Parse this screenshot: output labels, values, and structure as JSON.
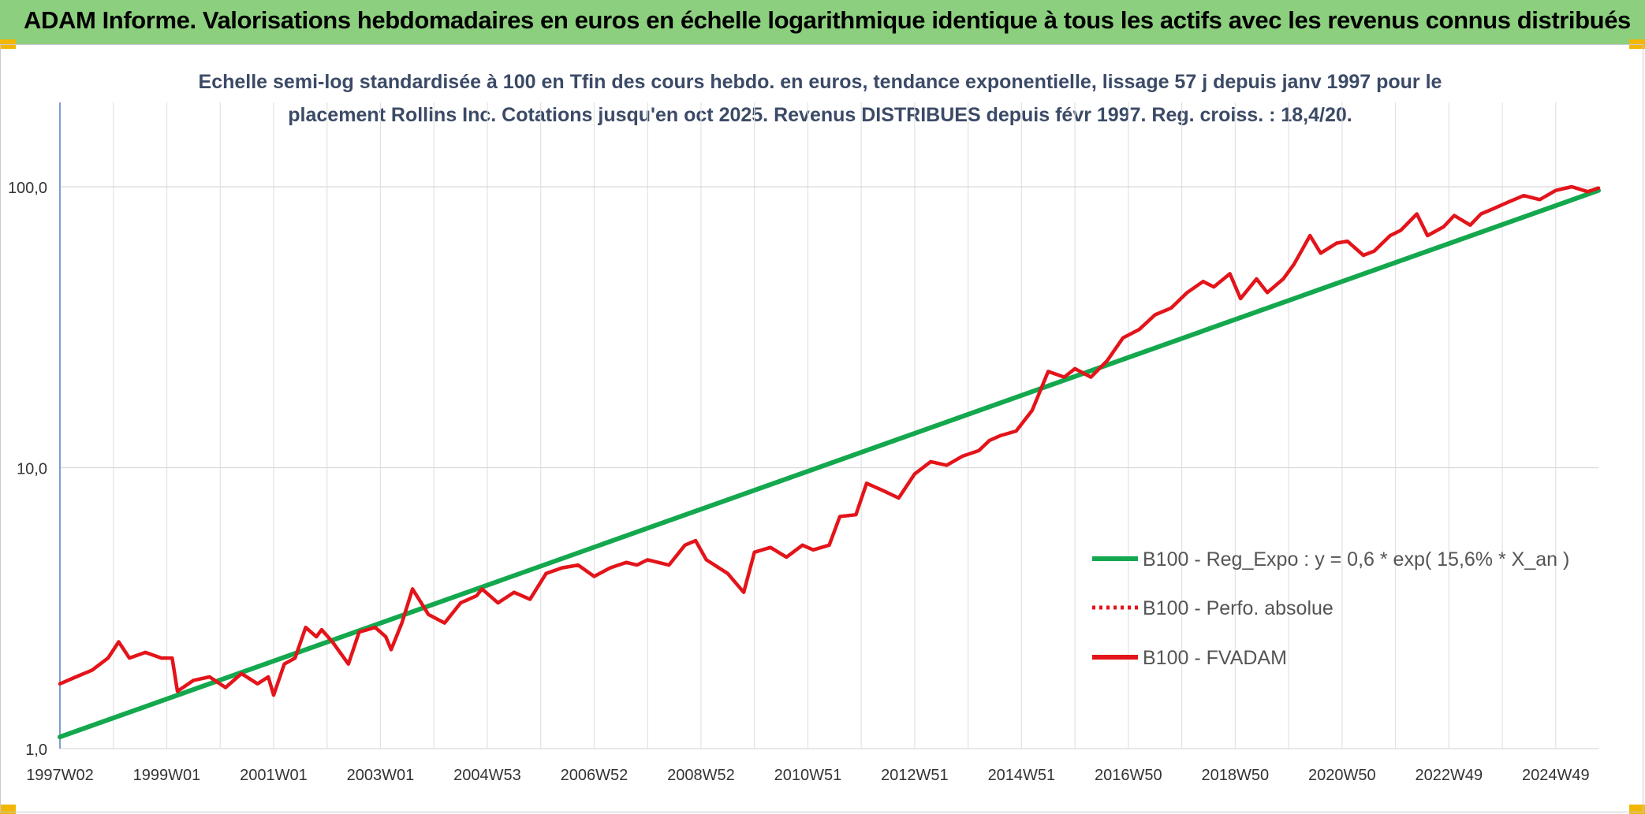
{
  "header": {
    "title": "ADAM Informe. Valorisations hebdomadaires en euros en échelle logarithmique identique à tous les actifs avec les revenus connus distribués"
  },
  "chart_data": {
    "type": "line",
    "subtitle_lines": [
      "Echelle semi-log standardisée à 100 en Tfin des cours hebdo. en euros, tendance exponentielle, lissage 57 j depuis janv 1997 pour le",
      "placement Rollins Inc. Cotations jusqu'en oct 2025. Revenus DISTRIBUES depuis févr 1997. Reg. croiss. : 18,4/20."
    ],
    "y_scale": "log",
    "ylim": [
      1,
      100
    ],
    "y_ticks": [
      1,
      10,
      100
    ],
    "y_tick_labels": [
      "1,0",
      "10,0",
      "100,0"
    ],
    "xlim": [
      1997.0,
      2025.8
    ],
    "x_ticks": [
      {
        "label": "1997W02",
        "x": 1997.0
      },
      {
        "label": "1999W01",
        "x": 1999.0
      },
      {
        "label": "2001W01",
        "x": 2001.0
      },
      {
        "label": "2003W01",
        "x": 2003.0
      },
      {
        "label": "2004W53",
        "x": 2005.0
      },
      {
        "label": "2006W52",
        "x": 2007.0
      },
      {
        "label": "2008W52",
        "x": 2009.0
      },
      {
        "label": "2010W51",
        "x": 2011.0
      },
      {
        "label": "2012W51",
        "x": 2013.0
      },
      {
        "label": "2014W51",
        "x": 2015.0
      },
      {
        "label": "2016W50",
        "x": 2017.0
      },
      {
        "label": "2018W50",
        "x": 2019.0
      },
      {
        "label": "2020W50",
        "x": 2021.0
      },
      {
        "label": "2022W49",
        "x": 2023.0
      },
      {
        "label": "2024W49",
        "x": 2025.0
      }
    ],
    "grid": true,
    "legend_position": "right",
    "series": [
      {
        "name": "B100 - Reg_Expo : y = 0,6 * exp( 15,6% *  X_an )",
        "color": "#14a84e",
        "style": "solid",
        "x": [
          1997.0,
          2025.8
        ],
        "y": [
          1.1,
          97.0
        ]
      },
      {
        "name": "B100 - Perfo. absolue",
        "color": "#e3141a",
        "style": "dotted",
        "x": [],
        "y": []
      },
      {
        "name": "B100 - FVADAM",
        "color": "#e3141a",
        "style": "solid",
        "x": [
          1997.0,
          1997.3,
          1997.6,
          1997.9,
          1998.1,
          1998.3,
          1998.6,
          1998.9,
          1999.1,
          1999.2,
          1999.5,
          1999.8,
          2000.1,
          2000.4,
          2000.7,
          2000.9,
          2001.0,
          2001.2,
          2001.4,
          2001.6,
          2001.8,
          2001.9,
          2002.1,
          2002.4,
          2002.6,
          2002.9,
          2003.1,
          2003.2,
          2003.4,
          2003.6,
          2003.9,
          2004.2,
          2004.5,
          2004.8,
          2004.9,
          2005.2,
          2005.5,
          2005.8,
          2006.1,
          2006.4,
          2006.7,
          2007.0,
          2007.3,
          2007.6,
          2007.8,
          2008.0,
          2008.4,
          2008.7,
          2008.9,
          2009.1,
          2009.5,
          2009.8,
          2010.0,
          2010.3,
          2010.6,
          2010.9,
          2011.1,
          2011.4,
          2011.6,
          2011.9,
          2012.1,
          2012.4,
          2012.7,
          2013.0,
          2013.3,
          2013.6,
          2013.9,
          2014.2,
          2014.4,
          2014.6,
          2014.9,
          2015.2,
          2015.5,
          2015.8,
          2016.0,
          2016.3,
          2016.6,
          2016.9,
          2017.2,
          2017.5,
          2017.8,
          2018.1,
          2018.4,
          2018.6,
          2018.9,
          2019.1,
          2019.4,
          2019.6,
          2019.9,
          2020.1,
          2020.4,
          2020.6,
          2020.9,
          2021.1,
          2021.4,
          2021.6,
          2021.9,
          2022.1,
          2022.4,
          2022.6,
          2022.9,
          2023.1,
          2023.4,
          2023.6,
          2023.8,
          2024.1,
          2024.4,
          2024.7,
          2025.0,
          2025.3,
          2025.6,
          2025.8
        ],
        "y": [
          1.7,
          1.8,
          1.9,
          2.1,
          2.4,
          2.1,
          2.2,
          2.1,
          2.1,
          1.6,
          1.75,
          1.8,
          1.65,
          1.85,
          1.7,
          1.8,
          1.55,
          2.0,
          2.1,
          2.7,
          2.5,
          2.65,
          2.4,
          2.0,
          2.6,
          2.7,
          2.5,
          2.25,
          2.8,
          3.7,
          3.0,
          2.8,
          3.3,
          3.5,
          3.7,
          3.3,
          3.6,
          3.4,
          4.2,
          4.4,
          4.5,
          4.1,
          4.4,
          4.6,
          4.5,
          4.7,
          4.5,
          5.3,
          5.5,
          4.7,
          4.2,
          3.6,
          5.0,
          5.2,
          4.8,
          5.3,
          5.1,
          5.3,
          6.7,
          6.8,
          8.8,
          8.3,
          7.8,
          9.5,
          10.5,
          10.2,
          11.0,
          11.5,
          12.5,
          13.0,
          13.5,
          16.0,
          22.0,
          21.0,
          22.5,
          21.0,
          24.0,
          29.0,
          31.0,
          35.0,
          37.0,
          42.0,
          46.0,
          44.0,
          49.0,
          40.0,
          47.0,
          42.0,
          47.0,
          53.0,
          67.0,
          58.0,
          63.0,
          64.0,
          57.0,
          59.0,
          67.0,
          70.0,
          80.0,
          67.0,
          72.0,
          79.0,
          73.0,
          80.0,
          83.0,
          88.0,
          93.0,
          90.0,
          97.0,
          100.0,
          96.0,
          99.0
        ]
      }
    ]
  }
}
